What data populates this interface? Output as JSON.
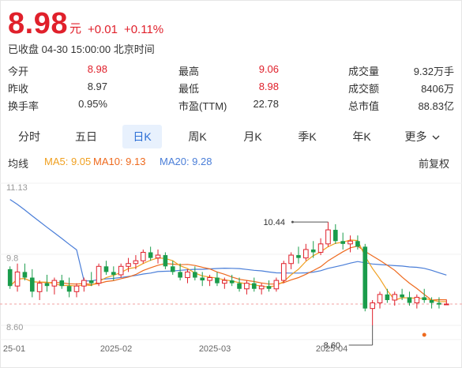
{
  "quote": {
    "price": "8.98",
    "unit": "元",
    "change": "+0.01",
    "change_pct": "+0.11%",
    "status": "已收盘 04-30 15:00:00 北京时间"
  },
  "stats": [
    {
      "label": "今开",
      "value": "8.98",
      "color": "#e0202b"
    },
    {
      "label": "最高",
      "value": "9.06",
      "color": "#e0202b"
    },
    {
      "label": "成交量",
      "value": "9.32万手",
      "color": "#333333"
    },
    {
      "label": "昨收",
      "value": "8.97",
      "color": "#333333"
    },
    {
      "label": "最低",
      "value": "8.98",
      "color": "#e0202b"
    },
    {
      "label": "成交额",
      "value": "8406万",
      "color": "#333333"
    },
    {
      "label": "换手率",
      "value": "0.95%",
      "color": "#333333"
    },
    {
      "label": "市盈(TTM)",
      "value": "22.78",
      "color": "#333333"
    },
    {
      "label": "总市值",
      "value": "88.83亿",
      "color": "#333333"
    }
  ],
  "tabs": [
    {
      "label": "分时",
      "active": false
    },
    {
      "label": "五日",
      "active": false
    },
    {
      "label": "日K",
      "active": true
    },
    {
      "label": "周K",
      "active": false
    },
    {
      "label": "月K",
      "active": false
    },
    {
      "label": "季K",
      "active": false
    },
    {
      "label": "年K",
      "active": false
    },
    {
      "label": "更多",
      "active": false
    }
  ],
  "more_icon": "chevron-down-icon",
  "legend": {
    "title": "均线",
    "ma5": "MA5: 9.05",
    "ma10": "MA10: 9.13",
    "ma20": "MA20: 9.28",
    "adjust": "前复权"
  },
  "colors": {
    "up": "#e0202b",
    "down": "#1a9c4b",
    "ma5": "#f0a020",
    "ma10": "#ee6a1e",
    "ma20": "#4a7ed8",
    "tab_active": "#2c6fd6"
  },
  "chart_data": {
    "type": "candlestick",
    "y_axis_labels": [
      "11.13",
      "9.8",
      "8.60"
    ],
    "x_tick_labels": [
      "25-01",
      "2025-02",
      "2025-03",
      "2025-04"
    ],
    "high_annotation": "10.44",
    "low_annotation": "8.60",
    "last_close": 8.98,
    "candles": [
      [
        9.6,
        9.65,
        9.25,
        9.3
      ],
      [
        9.3,
        9.7,
        9.2,
        9.55
      ],
      [
        9.55,
        9.7,
        9.4,
        9.45
      ],
      [
        9.45,
        9.6,
        9.1,
        9.2
      ],
      [
        9.2,
        9.4,
        9.05,
        9.35
      ],
      [
        9.35,
        9.5,
        9.2,
        9.3
      ],
      [
        9.3,
        9.45,
        9.15,
        9.4
      ],
      [
        9.4,
        9.5,
        9.25,
        9.3
      ],
      [
        9.3,
        9.45,
        9.1,
        9.2
      ],
      [
        9.2,
        9.35,
        9.1,
        9.3
      ],
      [
        9.3,
        9.45,
        9.2,
        9.4
      ],
      [
        9.4,
        9.55,
        9.3,
        9.35
      ],
      [
        9.35,
        9.7,
        9.3,
        9.65
      ],
      [
        9.65,
        9.75,
        9.5,
        9.55
      ],
      [
        9.55,
        9.65,
        9.4,
        9.5
      ],
      [
        9.5,
        9.7,
        9.45,
        9.65
      ],
      [
        9.65,
        9.8,
        9.55,
        9.7
      ],
      [
        9.7,
        9.85,
        9.6,
        9.75
      ],
      [
        9.75,
        9.95,
        9.7,
        9.9
      ],
      [
        9.9,
        10.0,
        9.75,
        9.8
      ],
      [
        9.8,
        9.95,
        9.7,
        9.85
      ],
      [
        9.85,
        9.9,
        9.6,
        9.65
      ],
      [
        9.65,
        9.75,
        9.5,
        9.55
      ],
      [
        9.55,
        9.7,
        9.4,
        9.45
      ],
      [
        9.45,
        9.6,
        9.35,
        9.55
      ],
      [
        9.55,
        9.65,
        9.4,
        9.45
      ],
      [
        9.45,
        9.55,
        9.3,
        9.4
      ],
      [
        9.4,
        9.5,
        9.3,
        9.45
      ],
      [
        9.45,
        9.55,
        9.3,
        9.35
      ],
      [
        9.35,
        9.45,
        9.25,
        9.4
      ],
      [
        9.4,
        9.5,
        9.3,
        9.35
      ],
      [
        9.35,
        9.45,
        9.2,
        9.25
      ],
      [
        9.25,
        9.4,
        9.15,
        9.35
      ],
      [
        9.35,
        9.45,
        9.2,
        9.25
      ],
      [
        9.25,
        9.35,
        9.15,
        9.3
      ],
      [
        9.3,
        9.4,
        9.2,
        9.25
      ],
      [
        9.25,
        9.45,
        9.2,
        9.4
      ],
      [
        9.4,
        9.75,
        9.35,
        9.7
      ],
      [
        9.7,
        9.9,
        9.6,
        9.85
      ],
      [
        9.85,
        10.0,
        9.7,
        9.8
      ],
      [
        9.8,
        10.05,
        9.75,
        9.95
      ],
      [
        9.95,
        10.1,
        9.8,
        9.9
      ],
      [
        9.9,
        10.15,
        9.85,
        10.05
      ],
      [
        10.05,
        10.44,
        10.0,
        10.3
      ],
      [
        10.3,
        10.4,
        10.05,
        10.1
      ],
      [
        10.1,
        10.25,
        9.95,
        10.05
      ],
      [
        10.05,
        10.2,
        9.9,
        10.1
      ],
      [
        10.1,
        10.2,
        9.95,
        10.0
      ],
      [
        10.0,
        10.05,
        8.85,
        8.9
      ],
      [
        8.9,
        9.05,
        8.6,
        9.0
      ],
      [
        9.0,
        9.2,
        8.9,
        9.15
      ],
      [
        9.15,
        9.25,
        9.0,
        9.05
      ],
      [
        9.05,
        9.2,
        8.95,
        9.15
      ],
      [
        9.15,
        9.25,
        9.05,
        9.1
      ],
      [
        9.1,
        9.2,
        8.95,
        9.0
      ],
      [
        9.0,
        9.15,
        8.9,
        9.1
      ],
      [
        9.1,
        9.25,
        9.0,
        9.05
      ],
      [
        9.05,
        9.1,
        8.9,
        9.0
      ],
      [
        9.0,
        9.1,
        8.9,
        8.97
      ],
      [
        8.98,
        9.06,
        8.98,
        8.98
      ]
    ]
  }
}
